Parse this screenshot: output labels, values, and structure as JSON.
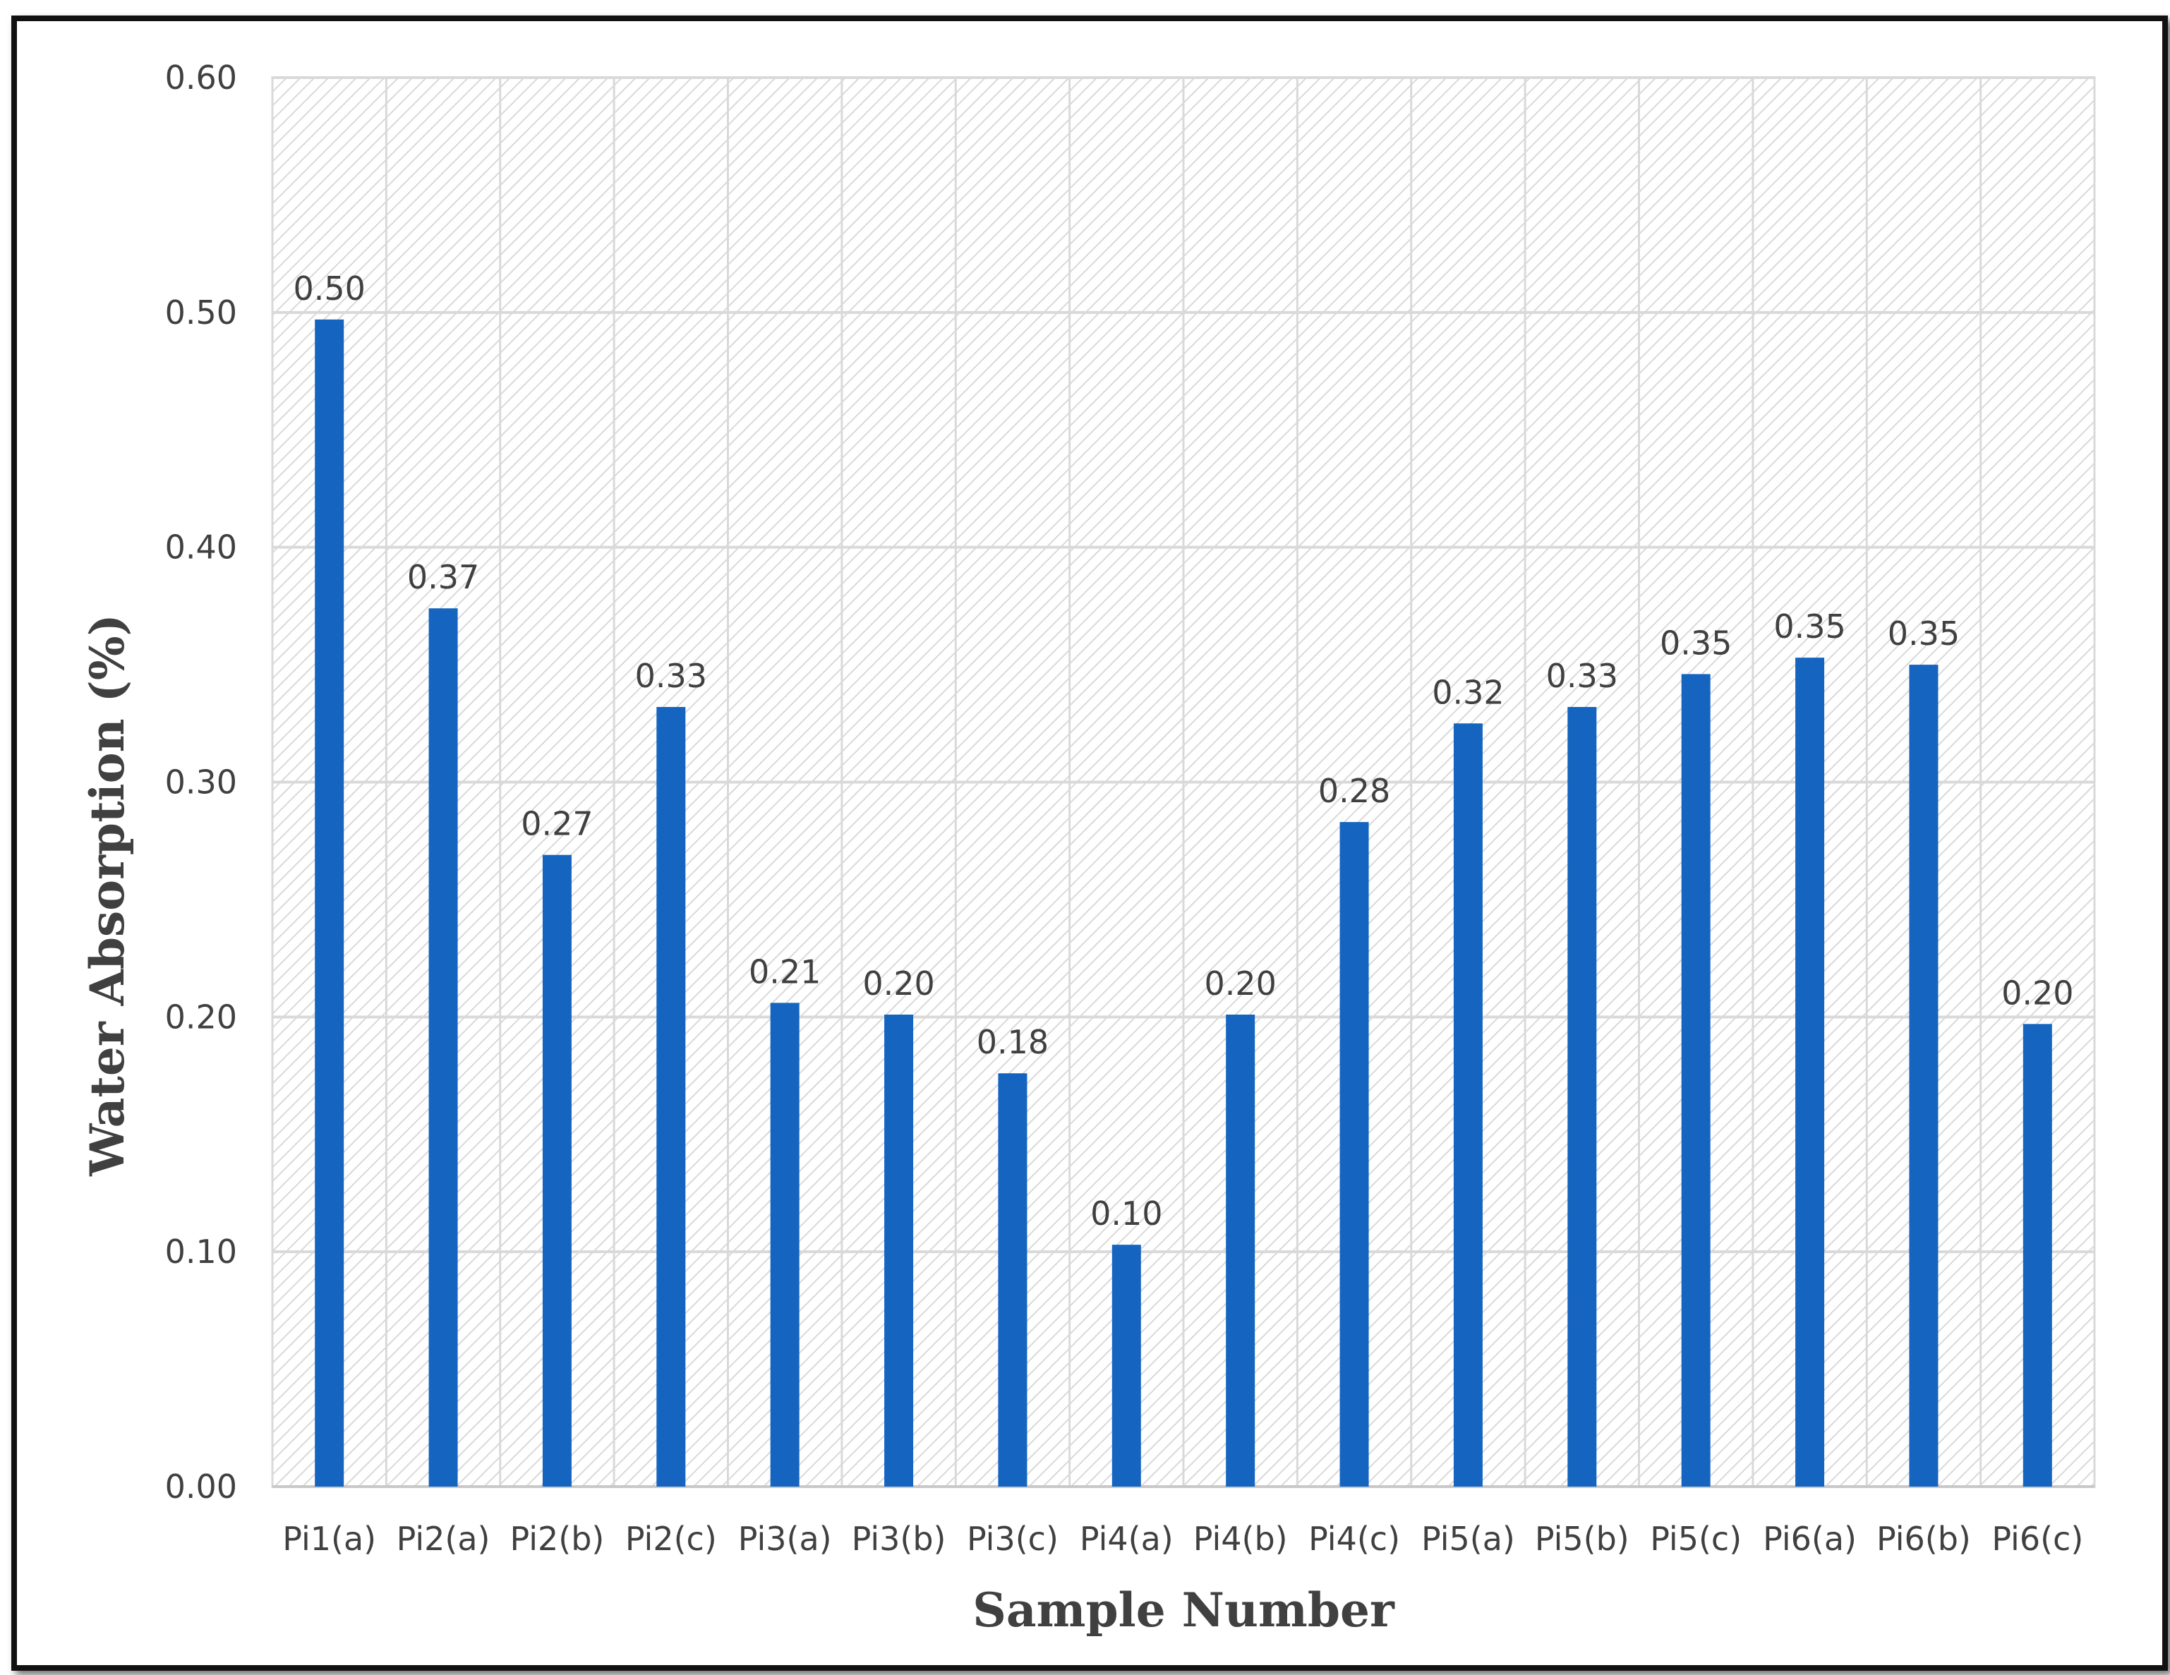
{
  "chart_data": {
    "type": "bar",
    "title": "",
    "xlabel": "Sample Number",
    "ylabel": "Water Absorption (%)",
    "categories": [
      "Pi1(a)",
      "Pi2(a)",
      "Pi2(b)",
      "Pi2(c)",
      "Pi3(a)",
      "Pi3(b)",
      "Pi3(c)",
      "Pi4(a)",
      "Pi4(b)",
      "Pi4(c)",
      "Pi5(a)",
      "Pi5(b)",
      "Pi5(c)",
      "Pi6(a)",
      "Pi6(b)",
      "Pi6(c)"
    ],
    "values": [
      0.497,
      0.374,
      0.269,
      0.332,
      0.206,
      0.201,
      0.176,
      0.103,
      0.201,
      0.283,
      0.325,
      0.332,
      0.346,
      0.353,
      0.35,
      0.197
    ],
    "value_labels": [
      "0.50",
      "0.37",
      "0.27",
      "0.33",
      "0.21",
      "0.20",
      "0.18",
      "0.10",
      "0.20",
      "0.28",
      "0.32",
      "0.33",
      "0.35",
      "0.35",
      "0.35",
      "0.20"
    ],
    "ylim": [
      0,
      0.6
    ],
    "yticks": [
      0.0,
      0.1,
      0.2,
      0.3,
      0.4,
      0.5,
      0.6
    ],
    "ytick_labels": [
      "0.00",
      "0.10",
      "0.20",
      "0.30",
      "0.40",
      "0.50",
      "0.60"
    ],
    "grid": true,
    "legend": "none",
    "bar_color": "#1565C0",
    "plot_background": "hatched light gray"
  }
}
